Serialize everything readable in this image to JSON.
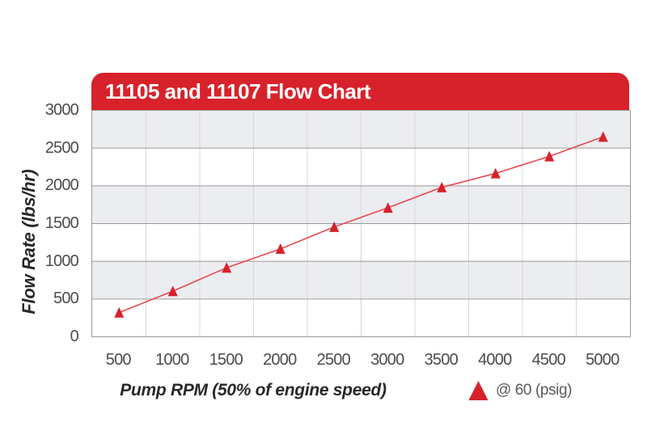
{
  "page": {
    "background": "#ffffff"
  },
  "chart_data": {
    "type": "line",
    "title": "11105 and 11107 Flow Chart",
    "xlabel": "Pump RPM (50% of engine speed)",
    "ylabel": "Flow Rate (lbs/hr)",
    "x": [
      500,
      1000,
      1500,
      2000,
      2500,
      3000,
      3500,
      4000,
      4500,
      5000
    ],
    "series": [
      {
        "name": "@ 60 (psig)",
        "marker": "triangle-up",
        "values": [
          315,
          600,
          910,
          1160,
          1450,
          1705,
          1975,
          2160,
          2385,
          2645
        ]
      }
    ],
    "ylim": [
      0,
      3000
    ],
    "yticks": [
      0,
      500,
      1000,
      1500,
      2000,
      2500,
      3000
    ],
    "grid": {
      "horizontal": true,
      "vertical": true,
      "bands": "alternating gray/white every 500, gray on top"
    },
    "legend_position": "bottom-right",
    "colors": {
      "title_bar": "#d7222b",
      "title_text": "#ffffff",
      "line": "#e8494d",
      "marker": "#d7222b",
      "band": "#ecedf1",
      "band_alt": "#ffffff",
      "hgrid": "#9a9a9a",
      "vgrid": "#d8d8d8",
      "tick_text": "#4b4c4e",
      "axis_title_text": "#28282a",
      "legend_text": "#58595b"
    }
  }
}
